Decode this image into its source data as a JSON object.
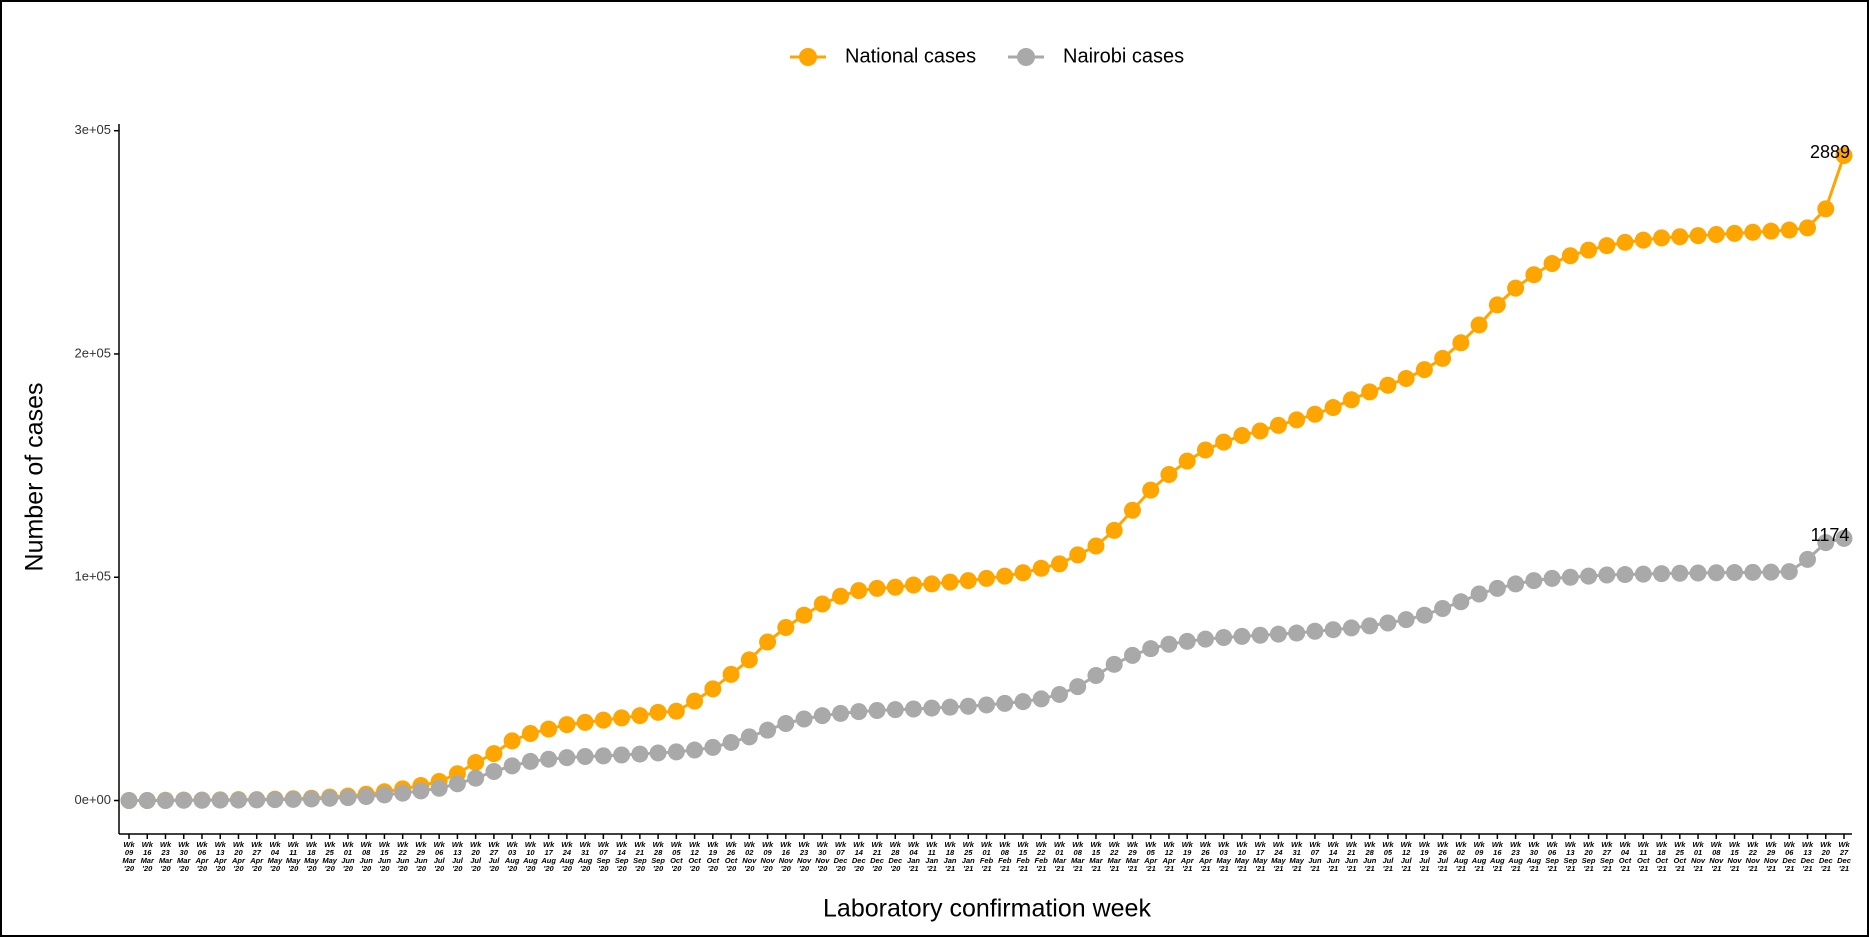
{
  "chart_data": {
    "type": "line",
    "xlabel": "Laboratory confirmation week",
    "ylabel": "Number of cases",
    "categories": [
      "Wk 09 Mar '20",
      "Wk 16 Mar '20",
      "Wk 23 Mar '20",
      "Wk 30 Mar '20",
      "Wk 06 Apr '20",
      "Wk 13 Apr '20",
      "Wk 20 Apr '20",
      "Wk 27 Apr '20",
      "Wk 04 May '20",
      "Wk 11 May '20",
      "Wk 18 May '20",
      "Wk 25 May '20",
      "Wk 01 Jun '20",
      "Wk 08 Jun '20",
      "Wk 15 Jun '20",
      "Wk 22 Jun '20",
      "Wk 29 Jun '20",
      "Wk 06 Jul '20",
      "Wk 13 Jul '20",
      "Wk 20 Jul '20",
      "Wk 27 Jul '20",
      "Wk 03 Aug '20",
      "Wk 10 Aug '20",
      "Wk 17 Aug '20",
      "Wk 24 Aug '20",
      "Wk 31 Aug '20",
      "Wk 07 Sep '20",
      "Wk 14 Sep '20",
      "Wk 21 Sep '20",
      "Wk 28 Sep '20",
      "Wk 05 Oct '20",
      "Wk 12 Oct '20",
      "Wk 19 Oct '20",
      "Wk 26 Oct '20",
      "Wk 02 Nov '20",
      "Wk 09 Nov '20",
      "Wk 16 Nov '20",
      "Wk 23 Nov '20",
      "Wk 30 Nov '20",
      "Wk 07 Dec '20",
      "Wk 14 Dec '20",
      "Wk 21 Dec '20",
      "Wk 28 Dec '20",
      "Wk 04 Jan '21",
      "Wk 11 Jan '21",
      "Wk 18 Jan '21",
      "Wk 25 Jan '21",
      "Wk 01 Feb '21",
      "Wk 08 Feb '21",
      "Wk 15 Feb '21",
      "Wk 22 Feb '21",
      "Wk 01 Mar '21",
      "Wk 08 Mar '21",
      "Wk 15 Mar '21",
      "Wk 22 Mar '21",
      "Wk 29 Mar '21",
      "Wk 05 Apr '21",
      "Wk 12 Apr '21",
      "Wk 19 Apr '21",
      "Wk 26 Apr '21",
      "Wk 03 May '21",
      "Wk 10 May '21",
      "Wk 17 May '21",
      "Wk 24 May '21",
      "Wk 31 May '21",
      "Wk 07 Jun '21",
      "Wk 14 Jun '21",
      "Wk 21 Jun '21",
      "Wk 28 Jun '21",
      "Wk 05 Jul '21",
      "Wk 12 Jul '21",
      "Wk 19 Jul '21",
      "Wk 26 Jul '21",
      "Wk 02 Aug '21",
      "Wk 09 Aug '21",
      "Wk 16 Aug '21",
      "Wk 23 Aug '21",
      "Wk 30 Aug '21",
      "Wk 06 Sep '21",
      "Wk 13 Sep '21",
      "Wk 20 Sep '21",
      "Wk 27 Sep '21",
      "Wk 04 Oct '21",
      "Wk 11 Oct '21",
      "Wk 18 Oct '21",
      "Wk 25 Oct '21",
      "Wk 01 Nov '21",
      "Wk 08 Nov '21",
      "Wk 15 Nov '21",
      "Wk 22 Nov '21",
      "Wk 29 Nov '21",
      "Wk 06 Dec '21",
      "Wk 13 Dec '21",
      "Wk 20 Dec '21",
      "Wk 27 Dec '21"
    ],
    "series": [
      {
        "name": "National cases",
        "color": "#FFA500",
        "values": [
          0,
          0,
          100,
          200,
          200,
          300,
          400,
          400,
          600,
          800,
          1000,
          1500,
          2000,
          2800,
          3900,
          5200,
          6700,
          8500,
          12000,
          17000,
          21000,
          26700,
          30000,
          32000,
          34000,
          35000,
          36000,
          37000,
          38000,
          39500,
          40000,
          44500,
          50000,
          56500,
          63000,
          71000,
          77500,
          83000,
          88000,
          91500,
          94000,
          95000,
          95500,
          96500,
          97000,
          97800,
          98500,
          99500,
          100500,
          102000,
          104000,
          106000,
          110000,
          114000,
          121000,
          130000,
          139000,
          146000,
          152000,
          157000,
          160500,
          163500,
          165500,
          168000,
          170500,
          173000,
          176000,
          179500,
          183000,
          186000,
          189000,
          193000,
          198000,
          205000,
          213000,
          222000,
          229500,
          235500,
          240500,
          244000,
          246500,
          248500,
          250000,
          251000,
          252000,
          252500,
          253000,
          253500,
          254000,
          254500,
          255000,
          255500,
          256500,
          265000,
          288900
        ]
      },
      {
        "name": "Nairobi cases",
        "color": "#A9A9A9",
        "values": [
          0,
          0,
          0,
          100,
          100,
          200,
          200,
          300,
          400,
          500,
          700,
          1000,
          1300,
          1800,
          2500,
          3300,
          4300,
          5500,
          7500,
          10000,
          13000,
          15500,
          17500,
          18500,
          19200,
          19700,
          20000,
          20400,
          20800,
          21300,
          21800,
          22600,
          23800,
          26000,
          28500,
          31500,
          34500,
          36500,
          38000,
          39000,
          39800,
          40300,
          40700,
          41000,
          41400,
          41800,
          42200,
          42800,
          43500,
          44300,
          45500,
          47500,
          51000,
          56000,
          61000,
          65000,
          68000,
          70000,
          71300,
          72300,
          73000,
          73500,
          74000,
          74500,
          75000,
          75800,
          76500,
          77300,
          78200,
          79500,
          81000,
          83000,
          86000,
          89000,
          92500,
          95000,
          97000,
          98500,
          99500,
          100000,
          100500,
          101000,
          101200,
          101400,
          101600,
          101800,
          101900,
          102000,
          102100,
          102200,
          102300,
          102500,
          108000,
          115500,
          117400
        ]
      }
    ],
    "annotations": [
      "2889",
      "1174"
    ],
    "ylim": [
      -15000,
      303000
    ],
    "yticks": [
      {
        "value": 0,
        "label": "0e+00"
      },
      {
        "value": 100000,
        "label": "1e+05"
      },
      {
        "value": 200000,
        "label": "2e+05"
      },
      {
        "value": 300000,
        "label": "3e+05"
      }
    ],
    "grid": false,
    "legend": "top"
  }
}
